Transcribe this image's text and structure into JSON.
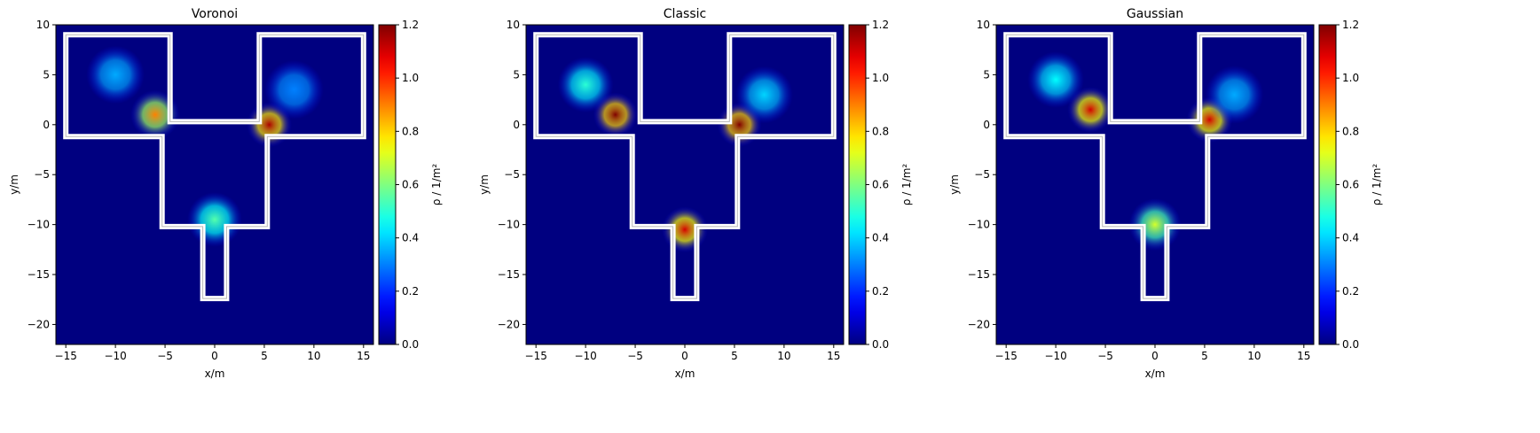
{
  "chart_data": [
    {
      "type": "heatmap",
      "title": "Voronoi",
      "xlabel": "x/m",
      "ylabel": "y/m",
      "xlim": [
        -16,
        16
      ],
      "ylim": [
        -22,
        10
      ],
      "xticks": [
        -15,
        -10,
        -5,
        0,
        5,
        10,
        15
      ],
      "yticks": [
        -20,
        -15,
        -10,
        -5,
        0,
        5,
        10
      ],
      "colorbar": {
        "label": "ρ / 1/m²",
        "range": [
          0,
          1.2
        ],
        "ticks": [
          0.0,
          0.2,
          0.4,
          0.6,
          0.8,
          1.0,
          1.2
        ],
        "colormap": "jet"
      },
      "hotspots": [
        {
          "x": -6.0,
          "y": 1.0,
          "value": 0.9
        },
        {
          "x": 5.5,
          "y": 0.0,
          "value": 1.15
        },
        {
          "x": 0.0,
          "y": -9.5,
          "value": 0.55
        },
        {
          "x": -10.0,
          "y": 5.0,
          "value": 0.35
        },
        {
          "x": 8.0,
          "y": 3.5,
          "value": 0.3
        }
      ]
    },
    {
      "type": "heatmap",
      "title": "Classic",
      "xlabel": "x/m",
      "ylabel": "y/m",
      "xlim": [
        -16,
        16
      ],
      "ylim": [
        -22,
        10
      ],
      "xticks": [
        -15,
        -10,
        -5,
        0,
        5,
        10,
        15
      ],
      "yticks": [
        -20,
        -15,
        -10,
        -5,
        0,
        5,
        10
      ],
      "colorbar": {
        "label": "ρ / 1/m²",
        "range": [
          0,
          1.2
        ],
        "ticks": [
          0.0,
          0.2,
          0.4,
          0.6,
          0.8,
          1.0,
          1.2
        ],
        "colormap": "jet"
      },
      "hotspots": [
        {
          "x": -7.0,
          "y": 1.0,
          "value": 1.2
        },
        {
          "x": 5.5,
          "y": 0.0,
          "value": 1.2
        },
        {
          "x": 0.0,
          "y": -10.5,
          "value": 1.1
        },
        {
          "x": -10.0,
          "y": 4.0,
          "value": 0.5
        },
        {
          "x": 8.0,
          "y": 3.0,
          "value": 0.4
        }
      ]
    },
    {
      "type": "heatmap",
      "title": "Gaussian",
      "xlabel": "x/m",
      "ylabel": "y/m",
      "xlim": [
        -16,
        16
      ],
      "ylim": [
        -22,
        10
      ],
      "xticks": [
        -15,
        -10,
        -5,
        0,
        5,
        10,
        15
      ],
      "yticks": [
        -20,
        -15,
        -10,
        -5,
        0,
        5,
        10
      ],
      "colorbar": {
        "label": "ρ / 1/m²",
        "range": [
          0,
          1.2
        ],
        "ticks": [
          0.0,
          0.2,
          0.4,
          0.6,
          0.8,
          1.0,
          1.2
        ],
        "colormap": "jet"
      },
      "hotspots": [
        {
          "x": -6.5,
          "y": 1.5,
          "value": 1.1
        },
        {
          "x": 5.5,
          "y": 0.5,
          "value": 1.1
        },
        {
          "x": 0.0,
          "y": -10.0,
          "value": 0.7
        },
        {
          "x": -10.0,
          "y": 4.5,
          "value": 0.45
        },
        {
          "x": 8.0,
          "y": 3.0,
          "value": 0.35
        }
      ]
    }
  ]
}
